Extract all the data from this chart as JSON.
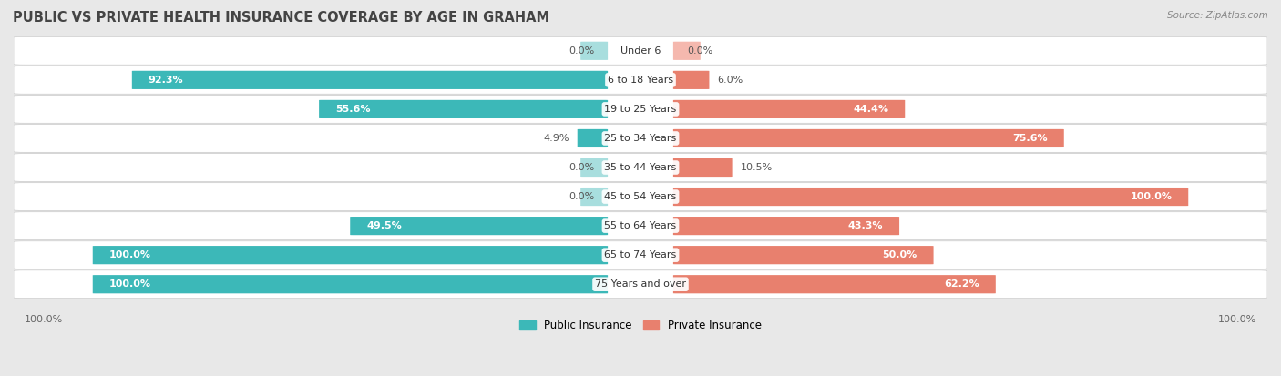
{
  "title": "Public vs Private Health Insurance Coverage by Age in Graham",
  "source": "Source: ZipAtlas.com",
  "categories": [
    "Under 6",
    "6 to 18 Years",
    "19 to 25 Years",
    "25 to 34 Years",
    "35 to 44 Years",
    "45 to 54 Years",
    "55 to 64 Years",
    "65 to 74 Years",
    "75 Years and over"
  ],
  "public_values": [
    0.0,
    92.3,
    55.6,
    4.9,
    0.0,
    0.0,
    49.5,
    100.0,
    100.0
  ],
  "private_values": [
    0.0,
    6.0,
    44.4,
    75.6,
    10.5,
    100.0,
    43.3,
    50.0,
    62.2
  ],
  "public_color": "#3cb8b8",
  "private_color": "#e8806e",
  "public_color_zero": "#a8dede",
  "private_color_zero": "#f5b8ae",
  "bg_color": "#e8e8e8",
  "row_bg_even": "#f0f0f0",
  "row_bg_odd": "#e4e4e4",
  "max_value": 100.0,
  "bar_height": 0.62,
  "title_fontsize": 10.5,
  "label_fontsize": 8.0,
  "category_fontsize": 8.0,
  "legend_fontsize": 8.5,
  "source_fontsize": 7.5,
  "axis_label": "100.0%"
}
